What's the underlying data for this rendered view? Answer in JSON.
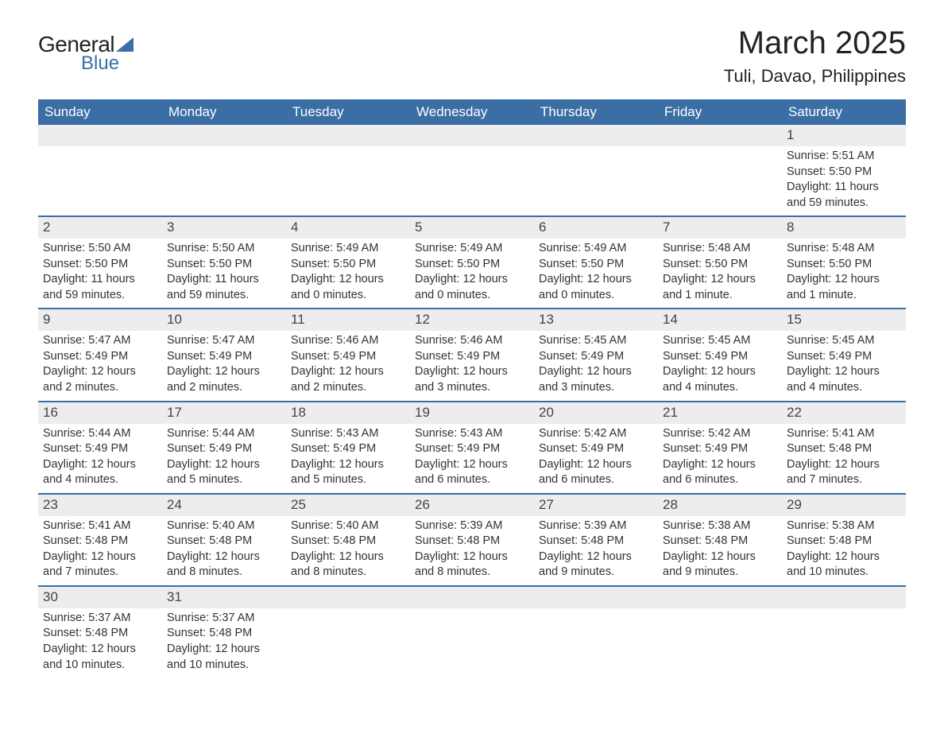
{
  "logo": {
    "text1": "General",
    "text2": "Blue",
    "sail_color": "#3a6ea5"
  },
  "title": "March 2025",
  "location": "Tuli, Davao, Philippines",
  "colors": {
    "header_bg": "#3a6ea5",
    "header_text": "#ffffff",
    "daynum_bg": "#ededed",
    "row_border": "#3a6ea5",
    "body_text": "#333333",
    "page_bg": "#ffffff"
  },
  "typography": {
    "title_fontsize": 40,
    "location_fontsize": 22,
    "header_fontsize": 17,
    "cell_fontsize": 14.5,
    "daynum_fontsize": 17
  },
  "day_headers": [
    "Sunday",
    "Monday",
    "Tuesday",
    "Wednesday",
    "Thursday",
    "Friday",
    "Saturday"
  ],
  "weeks": [
    [
      {
        "empty": true
      },
      {
        "empty": true
      },
      {
        "empty": true
      },
      {
        "empty": true
      },
      {
        "empty": true
      },
      {
        "empty": true
      },
      {
        "num": "1",
        "sunrise": "Sunrise: 5:51 AM",
        "sunset": "Sunset: 5:50 PM",
        "daylight": "Daylight: 11 hours and 59 minutes."
      }
    ],
    [
      {
        "num": "2",
        "sunrise": "Sunrise: 5:50 AM",
        "sunset": "Sunset: 5:50 PM",
        "daylight": "Daylight: 11 hours and 59 minutes."
      },
      {
        "num": "3",
        "sunrise": "Sunrise: 5:50 AM",
        "sunset": "Sunset: 5:50 PM",
        "daylight": "Daylight: 11 hours and 59 minutes."
      },
      {
        "num": "4",
        "sunrise": "Sunrise: 5:49 AM",
        "sunset": "Sunset: 5:50 PM",
        "daylight": "Daylight: 12 hours and 0 minutes."
      },
      {
        "num": "5",
        "sunrise": "Sunrise: 5:49 AM",
        "sunset": "Sunset: 5:50 PM",
        "daylight": "Daylight: 12 hours and 0 minutes."
      },
      {
        "num": "6",
        "sunrise": "Sunrise: 5:49 AM",
        "sunset": "Sunset: 5:50 PM",
        "daylight": "Daylight: 12 hours and 0 minutes."
      },
      {
        "num": "7",
        "sunrise": "Sunrise: 5:48 AM",
        "sunset": "Sunset: 5:50 PM",
        "daylight": "Daylight: 12 hours and 1 minute."
      },
      {
        "num": "8",
        "sunrise": "Sunrise: 5:48 AM",
        "sunset": "Sunset: 5:50 PM",
        "daylight": "Daylight: 12 hours and 1 minute."
      }
    ],
    [
      {
        "num": "9",
        "sunrise": "Sunrise: 5:47 AM",
        "sunset": "Sunset: 5:49 PM",
        "daylight": "Daylight: 12 hours and 2 minutes."
      },
      {
        "num": "10",
        "sunrise": "Sunrise: 5:47 AM",
        "sunset": "Sunset: 5:49 PM",
        "daylight": "Daylight: 12 hours and 2 minutes."
      },
      {
        "num": "11",
        "sunrise": "Sunrise: 5:46 AM",
        "sunset": "Sunset: 5:49 PM",
        "daylight": "Daylight: 12 hours and 2 minutes."
      },
      {
        "num": "12",
        "sunrise": "Sunrise: 5:46 AM",
        "sunset": "Sunset: 5:49 PM",
        "daylight": "Daylight: 12 hours and 3 minutes."
      },
      {
        "num": "13",
        "sunrise": "Sunrise: 5:45 AM",
        "sunset": "Sunset: 5:49 PM",
        "daylight": "Daylight: 12 hours and 3 minutes."
      },
      {
        "num": "14",
        "sunrise": "Sunrise: 5:45 AM",
        "sunset": "Sunset: 5:49 PM",
        "daylight": "Daylight: 12 hours and 4 minutes."
      },
      {
        "num": "15",
        "sunrise": "Sunrise: 5:45 AM",
        "sunset": "Sunset: 5:49 PM",
        "daylight": "Daylight: 12 hours and 4 minutes."
      }
    ],
    [
      {
        "num": "16",
        "sunrise": "Sunrise: 5:44 AM",
        "sunset": "Sunset: 5:49 PM",
        "daylight": "Daylight: 12 hours and 4 minutes."
      },
      {
        "num": "17",
        "sunrise": "Sunrise: 5:44 AM",
        "sunset": "Sunset: 5:49 PM",
        "daylight": "Daylight: 12 hours and 5 minutes."
      },
      {
        "num": "18",
        "sunrise": "Sunrise: 5:43 AM",
        "sunset": "Sunset: 5:49 PM",
        "daylight": "Daylight: 12 hours and 5 minutes."
      },
      {
        "num": "19",
        "sunrise": "Sunrise: 5:43 AM",
        "sunset": "Sunset: 5:49 PM",
        "daylight": "Daylight: 12 hours and 6 minutes."
      },
      {
        "num": "20",
        "sunrise": "Sunrise: 5:42 AM",
        "sunset": "Sunset: 5:49 PM",
        "daylight": "Daylight: 12 hours and 6 minutes."
      },
      {
        "num": "21",
        "sunrise": "Sunrise: 5:42 AM",
        "sunset": "Sunset: 5:49 PM",
        "daylight": "Daylight: 12 hours and 6 minutes."
      },
      {
        "num": "22",
        "sunrise": "Sunrise: 5:41 AM",
        "sunset": "Sunset: 5:48 PM",
        "daylight": "Daylight: 12 hours and 7 minutes."
      }
    ],
    [
      {
        "num": "23",
        "sunrise": "Sunrise: 5:41 AM",
        "sunset": "Sunset: 5:48 PM",
        "daylight": "Daylight: 12 hours and 7 minutes."
      },
      {
        "num": "24",
        "sunrise": "Sunrise: 5:40 AM",
        "sunset": "Sunset: 5:48 PM",
        "daylight": "Daylight: 12 hours and 8 minutes."
      },
      {
        "num": "25",
        "sunrise": "Sunrise: 5:40 AM",
        "sunset": "Sunset: 5:48 PM",
        "daylight": "Daylight: 12 hours and 8 minutes."
      },
      {
        "num": "26",
        "sunrise": "Sunrise: 5:39 AM",
        "sunset": "Sunset: 5:48 PM",
        "daylight": "Daylight: 12 hours and 8 minutes."
      },
      {
        "num": "27",
        "sunrise": "Sunrise: 5:39 AM",
        "sunset": "Sunset: 5:48 PM",
        "daylight": "Daylight: 12 hours and 9 minutes."
      },
      {
        "num": "28",
        "sunrise": "Sunrise: 5:38 AM",
        "sunset": "Sunset: 5:48 PM",
        "daylight": "Daylight: 12 hours and 9 minutes."
      },
      {
        "num": "29",
        "sunrise": "Sunrise: 5:38 AM",
        "sunset": "Sunset: 5:48 PM",
        "daylight": "Daylight: 12 hours and 10 minutes."
      }
    ],
    [
      {
        "num": "30",
        "sunrise": "Sunrise: 5:37 AM",
        "sunset": "Sunset: 5:48 PM",
        "daylight": "Daylight: 12 hours and 10 minutes."
      },
      {
        "num": "31",
        "sunrise": "Sunrise: 5:37 AM",
        "sunset": "Sunset: 5:48 PM",
        "daylight": "Daylight: 12 hours and 10 minutes."
      },
      {
        "empty": true
      },
      {
        "empty": true
      },
      {
        "empty": true
      },
      {
        "empty": true
      },
      {
        "empty": true
      }
    ]
  ]
}
